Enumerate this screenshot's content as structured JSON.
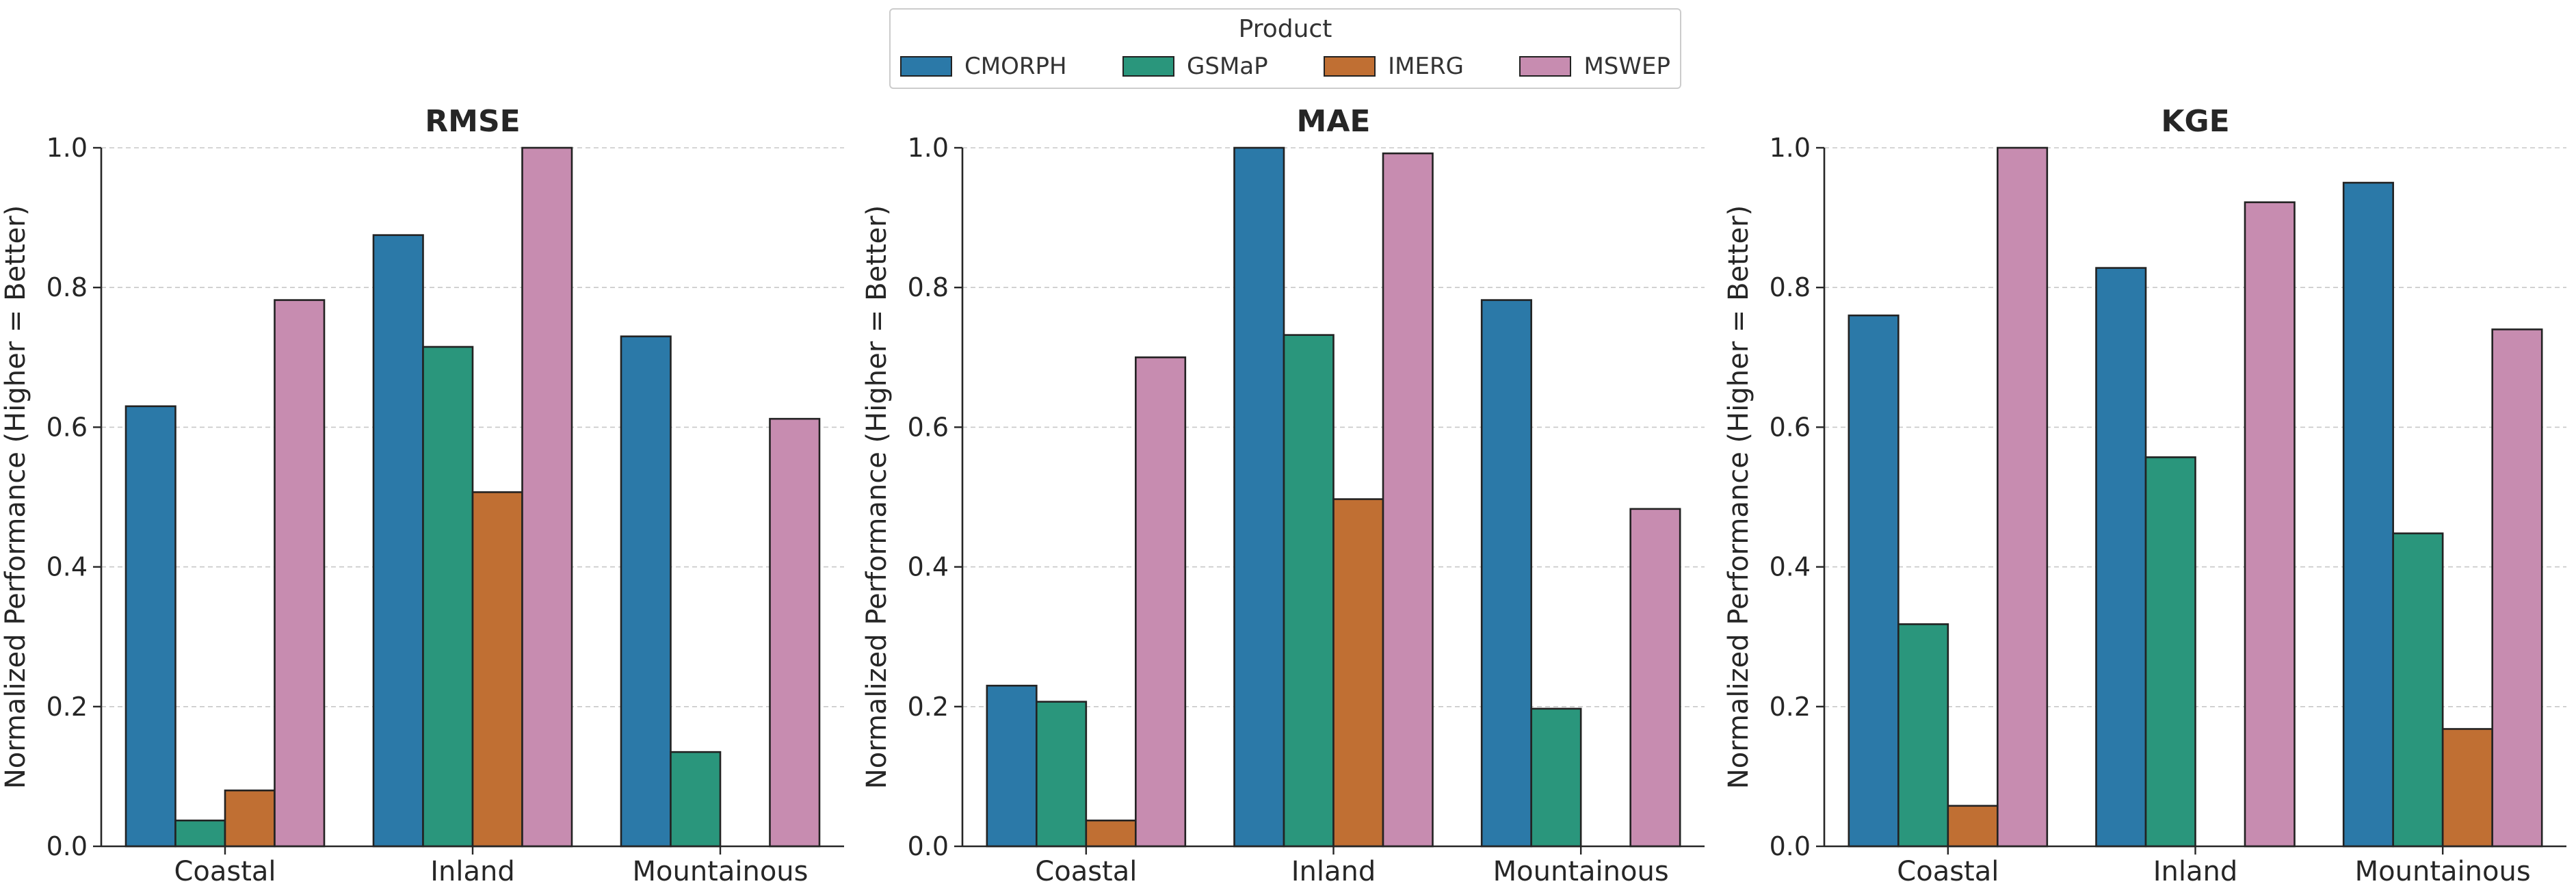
{
  "legend": {
    "title": "Product",
    "items": [
      {
        "label": "CMORPH",
        "color": "#2b79a8"
      },
      {
        "label": "GSMaP",
        "color": "#2a967c"
      },
      {
        "label": "IMERG",
        "color": "#c06f33"
      },
      {
        "label": "MSWEP",
        "color": "#c78cb0"
      }
    ]
  },
  "chart_data": [
    {
      "type": "bar",
      "title": "RMSE",
      "categories": [
        "Coastal",
        "Inland",
        "Mountainous"
      ],
      "ylabel": "Normalized Performance (Higher = Better)",
      "xlabel": "",
      "ylim": [
        0,
        1
      ],
      "yticks": [
        "0.0",
        "0.2",
        "0.4",
        "0.6",
        "0.8",
        "1.0"
      ],
      "series": [
        {
          "name": "CMORPH",
          "values": [
            0.63,
            0.875,
            0.73
          ]
        },
        {
          "name": "GSMaP",
          "values": [
            0.037,
            0.715,
            0.135
          ]
        },
        {
          "name": "IMERG",
          "values": [
            0.08,
            0.507,
            0.0
          ]
        },
        {
          "name": "MSWEP",
          "values": [
            0.782,
            1.0,
            0.612
          ]
        }
      ]
    },
    {
      "type": "bar",
      "title": "MAE",
      "categories": [
        "Coastal",
        "Inland",
        "Mountainous"
      ],
      "ylabel": "Normalized Performance (Higher = Better)",
      "xlabel": "",
      "ylim": [
        0,
        1
      ],
      "yticks": [
        "0.0",
        "0.2",
        "0.4",
        "0.6",
        "0.8",
        "1.0"
      ],
      "series": [
        {
          "name": "CMORPH",
          "values": [
            0.23,
            1.0,
            0.782
          ]
        },
        {
          "name": "GSMaP",
          "values": [
            0.207,
            0.732,
            0.197
          ]
        },
        {
          "name": "IMERG",
          "values": [
            0.037,
            0.497,
            0.0
          ]
        },
        {
          "name": "MSWEP",
          "values": [
            0.7,
            0.992,
            0.483
          ]
        }
      ]
    },
    {
      "type": "bar",
      "title": "KGE",
      "categories": [
        "Coastal",
        "Inland",
        "Mountainous"
      ],
      "ylabel": "Normalized Performance (Higher = Better)",
      "xlabel": "",
      "ylim": [
        0,
        1
      ],
      "yticks": [
        "0.0",
        "0.2",
        "0.4",
        "0.6",
        "0.8",
        "1.0"
      ],
      "series": [
        {
          "name": "CMORPH",
          "values": [
            0.76,
            0.828,
            0.95
          ]
        },
        {
          "name": "GSMaP",
          "values": [
            0.318,
            0.557,
            0.448
          ]
        },
        {
          "name": "IMERG",
          "values": [
            0.058,
            0.0,
            0.168
          ]
        },
        {
          "name": "MSWEP",
          "values": [
            1.0,
            0.922,
            0.74
          ]
        }
      ]
    }
  ]
}
